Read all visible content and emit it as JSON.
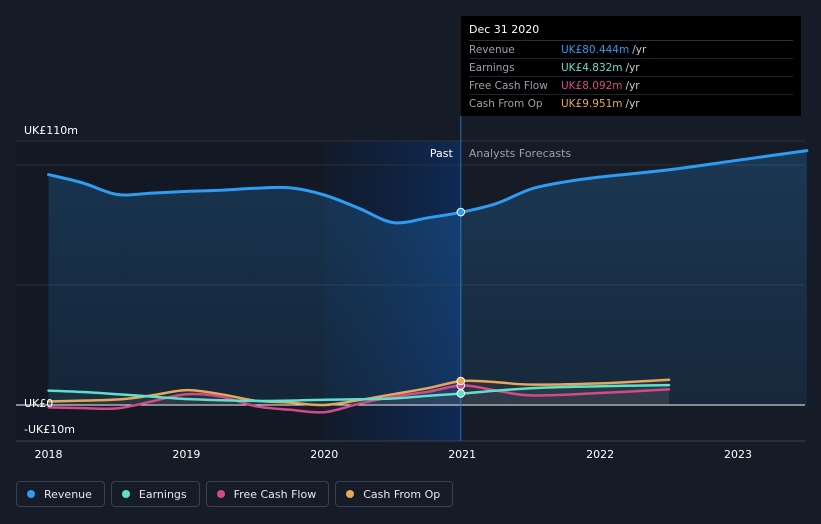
{
  "tooltip": {
    "date": "Dec 31 2020",
    "rows": [
      {
        "label": "Revenue",
        "value": "UK£80.444m",
        "unit": "/yr",
        "color": "#2e9cf0"
      },
      {
        "label": "Earnings",
        "value": "UK£4.832m",
        "unit": "/yr",
        "color": "#5fe0cc"
      },
      {
        "label": "Free Cash Flow",
        "value": "UK£8.092m",
        "unit": "/yr",
        "color": "#d14b8a"
      },
      {
        "label": "Cash From Op",
        "value": "UK£9.951m",
        "unit": "/yr",
        "color": "#e6a75a"
      }
    ]
  },
  "legend": [
    {
      "label": "Revenue",
      "color": "#2e9cf0"
    },
    {
      "label": "Earnings",
      "color": "#5fe0cc"
    },
    {
      "label": "Free Cash Flow",
      "color": "#d14b8a"
    },
    {
      "label": "Cash From Op",
      "color": "#e6a75a"
    }
  ],
  "chart_data": {
    "type": "line",
    "title": "",
    "y_tick_labels": [
      "UK£110m",
      "UK£0",
      "-UK£10m"
    ],
    "ylim": [
      -10,
      110
    ],
    "xlim": [
      2018,
      2023.5
    ],
    "x_tick_labels": [
      "2018",
      "2019",
      "2020",
      "2021",
      "2022",
      "2023"
    ],
    "x_ticks": [
      2018,
      2019,
      2020,
      2021,
      2022,
      2023
    ],
    "divider_x": 2020.99,
    "past_label": "Past",
    "forecast_label": "Analysts Forecasts",
    "highlight_start": 2020.0,
    "series": [
      {
        "name": "Revenue",
        "color": "#2e9cf0",
        "points": [
          [
            2018,
            96
          ],
          [
            2018.25,
            92.5
          ],
          [
            2018.5,
            87.7
          ],
          [
            2018.75,
            88.3
          ],
          [
            2019,
            89
          ],
          [
            2019.25,
            89.5
          ],
          [
            2019.5,
            90.3
          ],
          [
            2019.75,
            90.5
          ],
          [
            2020,
            87.5
          ],
          [
            2020.25,
            82
          ],
          [
            2020.5,
            76
          ],
          [
            2020.75,
            78
          ],
          [
            2021,
            80.4
          ],
          [
            2021.25,
            84
          ],
          [
            2021.5,
            90
          ],
          [
            2021.75,
            93
          ],
          [
            2022,
            95
          ],
          [
            2022.5,
            98
          ],
          [
            2023,
            102
          ],
          [
            2023.5,
            106
          ]
        ]
      },
      {
        "name": "Earnings",
        "color": "#5fe0cc",
        "points": [
          [
            2018,
            6
          ],
          [
            2018.25,
            5.4
          ],
          [
            2018.5,
            4.5
          ],
          [
            2018.75,
            3.5
          ],
          [
            2019,
            2.5
          ],
          [
            2019.25,
            2
          ],
          [
            2019.5,
            1.7
          ],
          [
            2019.75,
            1.8
          ],
          [
            2020,
            2.2
          ],
          [
            2020.25,
            2.4
          ],
          [
            2020.5,
            2.7
          ],
          [
            2020.75,
            3.8
          ],
          [
            2021,
            4.8
          ],
          [
            2021.5,
            7
          ],
          [
            2022,
            7.8
          ],
          [
            2022.5,
            8.3
          ]
        ]
      },
      {
        "name": "Free Cash Flow",
        "color": "#d14b8a",
        "points": [
          [
            2018,
            -1
          ],
          [
            2018.25,
            -1.3
          ],
          [
            2018.5,
            -1.4
          ],
          [
            2018.75,
            1.5
          ],
          [
            2019,
            4.5
          ],
          [
            2019.25,
            3.5
          ],
          [
            2019.5,
            -0.5
          ],
          [
            2019.75,
            -2
          ],
          [
            2020,
            -3
          ],
          [
            2020.25,
            0.5
          ],
          [
            2020.5,
            3.5
          ],
          [
            2020.75,
            5.5
          ],
          [
            2021,
            8.1
          ],
          [
            2021.25,
            6
          ],
          [
            2021.5,
            4
          ],
          [
            2022,
            5
          ],
          [
            2022.5,
            6.5
          ]
        ]
      },
      {
        "name": "Cash From Op",
        "color": "#e6a75a",
        "points": [
          [
            2018,
            1.5
          ],
          [
            2018.5,
            2.3
          ],
          [
            2018.75,
            4
          ],
          [
            2019,
            6.2
          ],
          [
            2019.25,
            4.5
          ],
          [
            2019.5,
            1.8
          ],
          [
            2019.75,
            1
          ],
          [
            2020,
            0
          ],
          [
            2020.25,
            2
          ],
          [
            2020.5,
            4.5
          ],
          [
            2020.75,
            7
          ],
          [
            2021,
            10
          ],
          [
            2021.25,
            9.5
          ],
          [
            2021.5,
            8.5
          ],
          [
            2022,
            9
          ],
          [
            2022.5,
            10.5
          ]
        ]
      }
    ]
  }
}
